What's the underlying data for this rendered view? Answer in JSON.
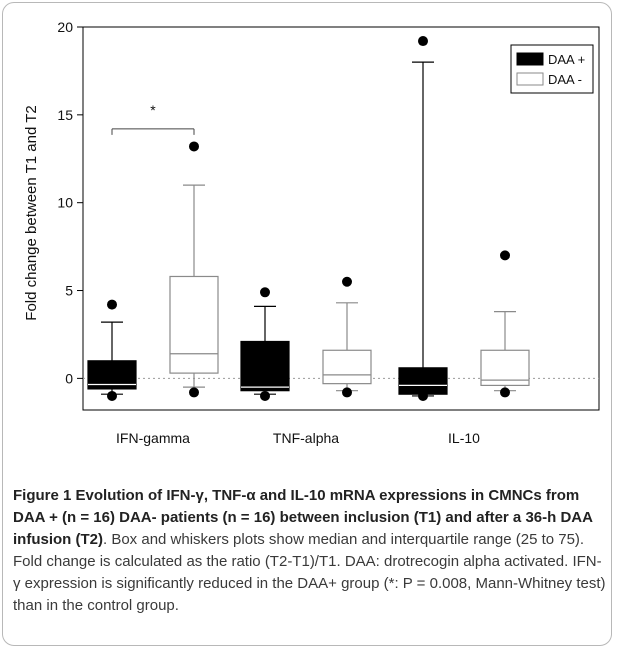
{
  "chart_data": {
    "type": "box",
    "ylabel": "Fold change between T1 and T2",
    "ylim": [
      -1.8,
      20
    ],
    "yticks": [
      "0",
      "5",
      "10",
      "15",
      "20"
    ],
    "ytick_values": [
      0,
      5,
      10,
      15,
      20
    ],
    "categories": [
      "IFN-gamma",
      "TNF-alpha",
      "IL-10"
    ],
    "legend_position": "top-right",
    "series": [
      {
        "name": "DAA +",
        "fill": "#000000",
        "stroke": "#000000",
        "boxes": [
          {
            "q1": -0.6,
            "median": -0.35,
            "q3": 1.0,
            "whisker_low": -0.9,
            "whisker_high": 3.2,
            "outliers": [
              4.2,
              -1.0
            ]
          },
          {
            "q1": -0.7,
            "median": -0.5,
            "q3": 2.1,
            "whisker_low": -0.9,
            "whisker_high": 4.1,
            "outliers": [
              4.9,
              -1.0
            ]
          },
          {
            "q1": -0.9,
            "median": -0.4,
            "q3": 0.6,
            "whisker_low": -1.0,
            "whisker_high": 18.0,
            "outliers": [
              19.2,
              -1.0
            ]
          }
        ]
      },
      {
        "name": "DAA -",
        "fill": "#ffffff",
        "stroke": "#8a8a8a",
        "boxes": [
          {
            "q1": 0.3,
            "median": 1.4,
            "q3": 5.8,
            "whisker_low": -0.5,
            "whisker_high": 11.0,
            "outliers": [
              13.2,
              -0.8
            ]
          },
          {
            "q1": -0.3,
            "median": 0.2,
            "q3": 1.6,
            "whisker_low": -0.7,
            "whisker_high": 4.3,
            "outliers": [
              5.5,
              -0.8
            ]
          },
          {
            "q1": -0.4,
            "median": -0.1,
            "q3": 1.6,
            "whisker_low": -0.7,
            "whisker_high": 3.8,
            "outliers": [
              7.0,
              -0.8
            ]
          }
        ]
      }
    ],
    "significance": {
      "label": "*",
      "group": "IFN-gamma",
      "y": 14.2
    },
    "reference_line": {
      "y": 0,
      "style": "dotted"
    }
  },
  "caption": {
    "title": "Figure 1 Evolution of IFN-γ, TNF-α and IL-10 mRNA expressions in CMNCs from DAA + (n = 16) DAA- patients (n = 16) between inclusion (T1) and after a 36-h DAA infusion (T2)",
    "body": ". Box and whiskers plots show median and interquartile range (25 to 75). Fold change is calculated as the ratio (T2-T1)/T1. DAA: drotrecogin alpha activated. IFN-γ expression is significantly reduced in the DAA+ group (*: P = 0.008, Mann-Whitney test) than in the control group."
  }
}
